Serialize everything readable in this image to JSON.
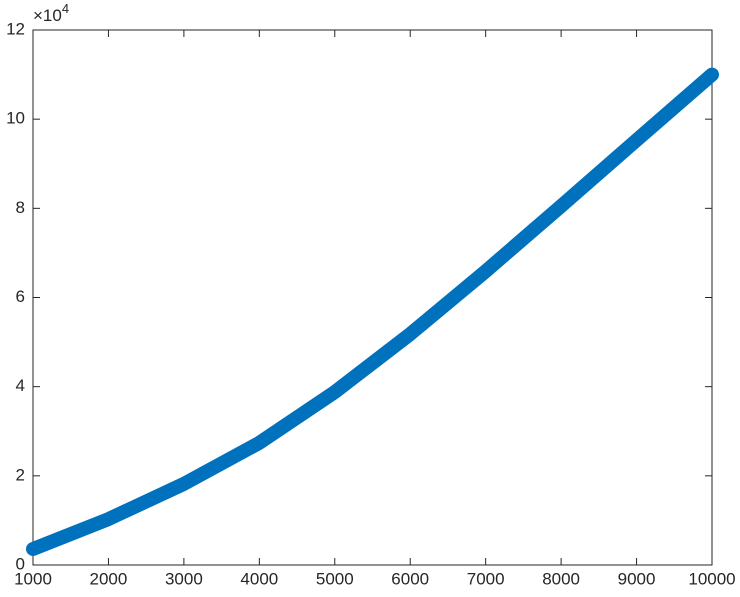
{
  "chart_data": {
    "type": "line",
    "x": [
      1000,
      2000,
      3000,
      4000,
      5000,
      6000,
      7000,
      8000,
      9000,
      10000
    ],
    "series": [
      {
        "color": "#0072bd",
        "values": [
          0.36,
          1.03,
          1.82,
          2.74,
          3.88,
          5.18,
          6.59,
          8.05,
          9.53,
          11.0
        ]
      }
    ],
    "xlim": [
      1000,
      10000
    ],
    "xticks": [
      1000,
      2000,
      3000,
      4000,
      5000,
      6000,
      7000,
      8000,
      9000,
      10000
    ],
    "ylim": [
      0,
      12
    ],
    "yticks": [
      0,
      2,
      4,
      6,
      8,
      10,
      12
    ],
    "y_multiplier": {
      "base": "×10",
      "exponent": "4"
    },
    "grid": false
  }
}
